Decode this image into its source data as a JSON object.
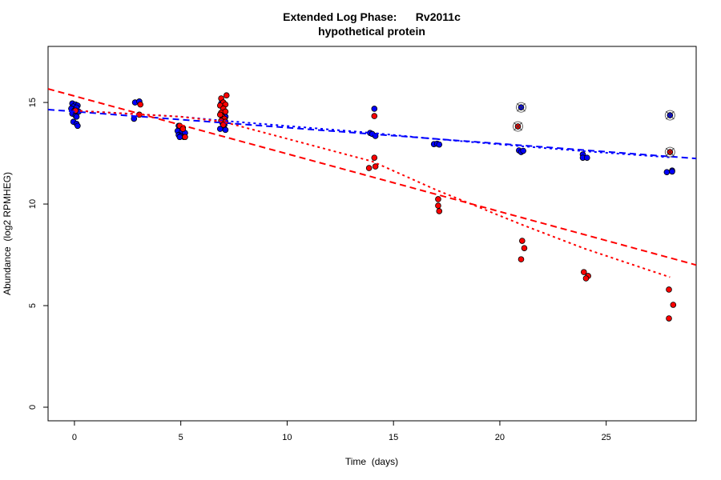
{
  "chart_data": {
    "type": "scatter",
    "title": "Extended Log Phase:      Rv2011c",
    "subtitle": "hypothetical protein",
    "xlabel": "Time  (days)",
    "ylabel": "Abundance  (log2 RPMHEG)",
    "xlim": [
      -1.24,
      29.23
    ],
    "ylim": [
      -0.67,
      17.76
    ],
    "xticks": [
      "0",
      "5",
      "10",
      "15",
      "20",
      "25"
    ],
    "yticks": [
      "0",
      "5",
      "10",
      "15"
    ],
    "grid": false,
    "colors": {
      "blue": "#0000ff",
      "red": "#ff0000"
    },
    "series": [
      {
        "color": "blue",
        "points": [
          [
            -0.1,
            14.95
          ],
          [
            0.05,
            14.9
          ],
          [
            0.15,
            14.85
          ],
          [
            -0.05,
            14.8
          ],
          [
            0.1,
            14.75
          ],
          [
            -0.15,
            14.7
          ],
          [
            0.0,
            14.6
          ],
          [
            0.2,
            14.55
          ],
          [
            -0.1,
            14.45
          ],
          [
            0.05,
            14.35
          ],
          [
            0.1,
            14.3
          ],
          [
            -0.05,
            14.05
          ],
          [
            0.1,
            13.95
          ],
          [
            0.15,
            13.85
          ],
          [
            2.85,
            15.0
          ],
          [
            3.05,
            15.05
          ],
          [
            2.8,
            14.2
          ],
          [
            4.9,
            13.85
          ],
          [
            5.1,
            13.75
          ],
          [
            4.85,
            13.6
          ],
          [
            5.05,
            13.55
          ],
          [
            5.2,
            13.5
          ],
          [
            4.9,
            13.4
          ],
          [
            5.0,
            13.35
          ],
          [
            5.15,
            13.3
          ],
          [
            4.95,
            13.3
          ],
          [
            6.9,
            14.95
          ],
          [
            7.0,
            14.6
          ],
          [
            7.1,
            14.3
          ],
          [
            6.95,
            14.0
          ],
          [
            7.05,
            13.9
          ],
          [
            6.85,
            13.7
          ],
          [
            7.1,
            13.65
          ],
          [
            14.1,
            14.69
          ],
          [
            13.9,
            13.5
          ],
          [
            14.0,
            13.45
          ],
          [
            14.15,
            13.35
          ],
          [
            16.9,
            12.95
          ],
          [
            17.05,
            12.97
          ],
          [
            17.15,
            12.93
          ],
          [
            20.9,
            12.64
          ],
          [
            21.0,
            12.56
          ],
          [
            21.1,
            12.62
          ],
          [
            23.9,
            12.44
          ],
          [
            23.9,
            12.28
          ],
          [
            24.1,
            12.28
          ],
          [
            27.85,
            11.57
          ],
          [
            28.1,
            11.65
          ],
          [
            28.1,
            11.6
          ]
        ],
        "highlighted": [
          [
            21.0,
            14.76
          ],
          [
            28.0,
            14.37
          ]
        ],
        "fits": [
          {
            "style": "dashed",
            "points": [
              [
                -1.24,
                14.65
              ],
              [
                29.23,
                12.24
              ]
            ]
          },
          {
            "style": "dotted",
            "points": [
              [
                0,
                14.6
              ],
              [
                5,
                14.3
              ],
              [
                7,
                14.1
              ],
              [
                14,
                13.5
              ],
              [
                17,
                13.2
              ],
              [
                21,
                12.85
              ],
              [
                24,
                12.6
              ],
              [
                28,
                12.3
              ]
            ]
          }
        ]
      },
      {
        "color": "red",
        "points": [
          [
            0.05,
            14.6
          ],
          [
            3.1,
            14.9
          ],
          [
            3.05,
            14.4
          ],
          [
            4.95,
            13.85
          ],
          [
            5.1,
            13.7
          ],
          [
            5.2,
            13.3
          ],
          [
            7.15,
            15.35
          ],
          [
            6.9,
            15.2
          ],
          [
            7.0,
            15.0
          ],
          [
            6.85,
            14.85
          ],
          [
            7.1,
            14.9
          ],
          [
            7.0,
            14.7
          ],
          [
            6.9,
            14.5
          ],
          [
            7.1,
            14.55
          ],
          [
            6.95,
            14.3
          ],
          [
            7.05,
            14.2
          ],
          [
            6.9,
            14.1
          ],
          [
            7.1,
            14.05
          ],
          [
            7.0,
            13.9
          ],
          [
            6.85,
            14.4
          ],
          [
            14.1,
            14.33
          ],
          [
            14.1,
            12.28
          ],
          [
            13.85,
            11.77
          ],
          [
            14.15,
            11.85
          ],
          [
            17.1,
            10.24
          ],
          [
            17.1,
            9.92
          ],
          [
            17.15,
            9.65
          ],
          [
            21.05,
            8.19
          ],
          [
            21.15,
            7.83
          ],
          [
            21.0,
            7.28
          ],
          [
            23.95,
            6.65
          ],
          [
            24.15,
            6.46
          ],
          [
            24.05,
            6.34
          ],
          [
            27.95,
            5.79
          ],
          [
            28.15,
            5.04
          ],
          [
            27.95,
            4.37
          ]
        ],
        "highlighted": [
          [
            20.85,
            13.82
          ],
          [
            28.0,
            12.56
          ]
        ],
        "fits": [
          {
            "style": "dashed",
            "points": [
              [
                -1.24,
                15.67
              ],
              [
                29.23,
                7.0
              ]
            ]
          },
          {
            "style": "dotted",
            "points": [
              [
                0,
                14.6
              ],
              [
                5,
                14.3
              ],
              [
                7,
                14.05
              ],
              [
                14,
                12.1
              ],
              [
                17,
                10.7
              ],
              [
                21,
                9.0
              ],
              [
                24,
                7.8
              ],
              [
                28,
                6.4
              ]
            ]
          }
        ]
      }
    ]
  }
}
